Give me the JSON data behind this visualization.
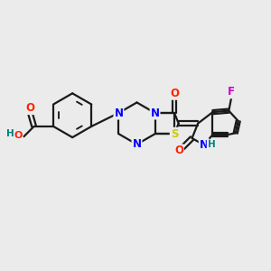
{
  "background_color": "#ebebeb",
  "bond_color": "#1a1a1a",
  "bond_width": 1.6,
  "atom_colors": {
    "N": "#0000ff",
    "O": "#ff2200",
    "S": "#cccc00",
    "F": "#cc00cc",
    "H": "#008080",
    "C": "#1a1a1a"
  },
  "font_size_atom": 8.5
}
